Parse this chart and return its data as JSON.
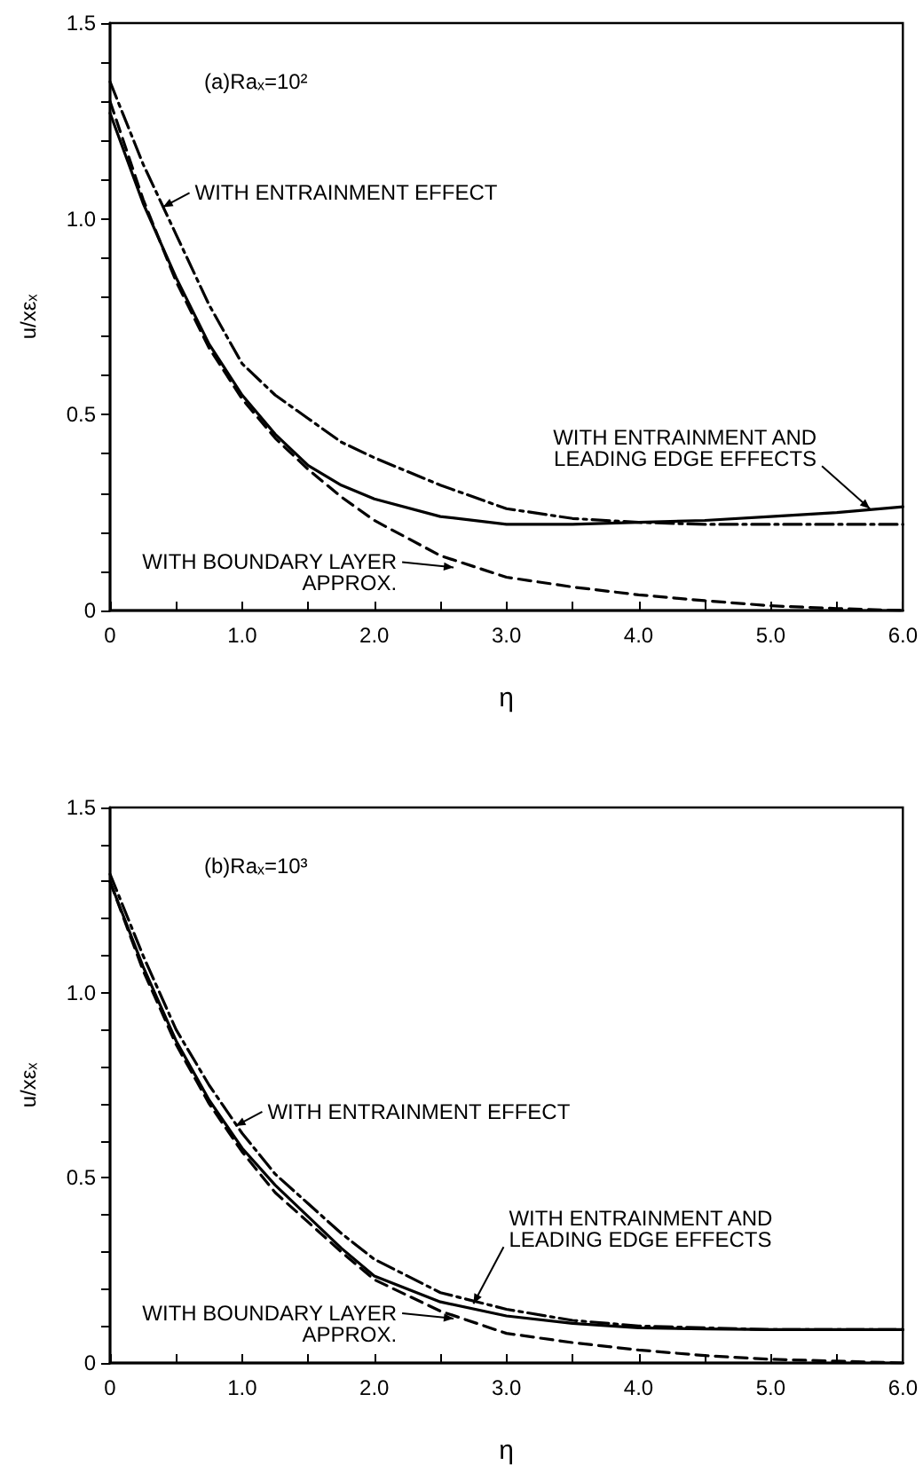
{
  "chart_data": [
    {
      "type": "line",
      "title": "(a)Raₓ=10²",
      "xlabel": "η",
      "ylabel": "u/xεₓ",
      "marker": "none",
      "grid": false,
      "x": [
        0,
        0.25,
        0.5,
        0.75,
        1.0,
        1.25,
        1.5,
        1.75,
        2.0,
        2.5,
        3.0,
        3.5,
        4.0,
        4.5,
        5.0,
        5.5,
        6.0
      ],
      "xlim": [
        0,
        6
      ],
      "xticks": [
        {
          "value": 0,
          "label": "0"
        },
        {
          "value": 0.5,
          "label": null
        },
        {
          "value": 1,
          "label": "1.0"
        },
        {
          "value": 1.5,
          "label": null
        },
        {
          "value": 2,
          "label": "2.0"
        },
        {
          "value": 2.5,
          "label": null
        },
        {
          "value": 3,
          "label": "3.0"
        },
        {
          "value": 3.5,
          "label": null
        },
        {
          "value": 4,
          "label": "4.0"
        },
        {
          "value": 4.5,
          "label": null
        },
        {
          "value": 5,
          "label": "5.0"
        },
        {
          "value": 5.5,
          "label": null
        },
        {
          "value": 6,
          "label": "6.0"
        }
      ],
      "ylim": [
        0,
        1.5
      ],
      "yticks": [
        {
          "value": 0,
          "label": "0"
        },
        {
          "value": 0.1,
          "label": null
        },
        {
          "value": 0.2,
          "label": null
        },
        {
          "value": 0.3,
          "label": null
        },
        {
          "value": 0.4,
          "label": null
        },
        {
          "value": 0.5,
          "label": "0.5"
        },
        {
          "value": 0.6,
          "label": null
        },
        {
          "value": 0.7,
          "label": null
        },
        {
          "value": 0.8,
          "label": null
        },
        {
          "value": 0.9,
          "label": null
        },
        {
          "value": 1,
          "label": "1.0"
        },
        {
          "value": 1.1,
          "label": null
        },
        {
          "value": 1.2,
          "label": null
        },
        {
          "value": 1.3,
          "label": null
        },
        {
          "value": 1.4,
          "label": null
        },
        {
          "value": 1.5,
          "label": "1.5"
        }
      ],
      "series": [
        {
          "color": "#000000",
          "line_style": "solid",
          "values": [
            1.27,
            1.04,
            0.85,
            0.68,
            0.55,
            0.45,
            0.37,
            0.32,
            0.285,
            0.24,
            0.22,
            0.22,
            0.225,
            0.23,
            0.24,
            0.25,
            0.265
          ]
        },
        {
          "color": "#000000",
          "line_style": "dashdot",
          "values": [
            1.35,
            1.14,
            0.96,
            0.78,
            0.63,
            0.55,
            0.49,
            0.43,
            0.39,
            0.32,
            0.26,
            0.235,
            0.225,
            0.22,
            0.22,
            0.22,
            0.22
          ]
        },
        {
          "color": "#000000",
          "line_style": "dashed",
          "values": [
            1.3,
            1.05,
            0.84,
            0.67,
            0.54,
            0.44,
            0.36,
            0.29,
            0.23,
            0.14,
            0.085,
            0.06,
            0.04,
            0.025,
            0.012,
            0.005,
            0.0
          ]
        }
      ],
      "annotations": [
        {
          "text": "WITH ENTRAINMENT EFFECT",
          "x": 0.4,
          "y": 1.03
        },
        {
          "text": "WITH ENTRAINMENT AND\nLEADING EDGE EFFECTS",
          "x": 5.75,
          "y": 0.26
        },
        {
          "text": "WITH BOUNDARY LAYER\nAPPROX.",
          "x": 2.6,
          "y": 0.11
        }
      ]
    },
    {
      "type": "line",
      "title": "(b)Raₓ=10³",
      "xlabel": "η",
      "ylabel": "u/xεₓ",
      "marker": "none",
      "grid": false,
      "x": [
        0,
        0.25,
        0.5,
        0.75,
        1.0,
        1.25,
        1.5,
        1.75,
        2.0,
        2.5,
        3.0,
        3.5,
        4.0,
        4.5,
        5.0,
        5.5,
        6.0
      ],
      "xlim": [
        0,
        6
      ],
      "xticks": [
        {
          "value": 0,
          "label": "0"
        },
        {
          "value": 0.5,
          "label": null
        },
        {
          "value": 1,
          "label": "1.0"
        },
        {
          "value": 1.5,
          "label": null
        },
        {
          "value": 2,
          "label": "2.0"
        },
        {
          "value": 2.5,
          "label": null
        },
        {
          "value": 3,
          "label": "3.0"
        },
        {
          "value": 3.5,
          "label": null
        },
        {
          "value": 4,
          "label": "4.0"
        },
        {
          "value": 4.5,
          "label": null
        },
        {
          "value": 5,
          "label": "5.0"
        },
        {
          "value": 5.5,
          "label": null
        },
        {
          "value": 6,
          "label": "6.0"
        }
      ],
      "ylim": [
        0,
        1.5
      ],
      "yticks": [
        {
          "value": 0,
          "label": "0"
        },
        {
          "value": 0.1,
          "label": null
        },
        {
          "value": 0.2,
          "label": null
        },
        {
          "value": 0.3,
          "label": null
        },
        {
          "value": 0.4,
          "label": null
        },
        {
          "value": 0.5,
          "label": "0.5"
        },
        {
          "value": 0.6,
          "label": null
        },
        {
          "value": 0.7,
          "label": null
        },
        {
          "value": 0.8,
          "label": null
        },
        {
          "value": 0.9,
          "label": null
        },
        {
          "value": 1,
          "label": "1.0"
        },
        {
          "value": 1.1,
          "label": null
        },
        {
          "value": 1.2,
          "label": null
        },
        {
          "value": 1.3,
          "label": null
        },
        {
          "value": 1.4,
          "label": null
        },
        {
          "value": 1.5,
          "label": "1.5"
        }
      ],
      "series": [
        {
          "color": "#000000",
          "line_style": "solid",
          "values": [
            1.3,
            1.07,
            0.87,
            0.71,
            0.58,
            0.48,
            0.395,
            0.31,
            0.235,
            0.165,
            0.127,
            0.107,
            0.095,
            0.092,
            0.09,
            0.09,
            0.09
          ]
        },
        {
          "color": "#000000",
          "line_style": "dashdot",
          "values": [
            1.32,
            1.1,
            0.9,
            0.75,
            0.62,
            0.51,
            0.43,
            0.35,
            0.28,
            0.19,
            0.145,
            0.115,
            0.1,
            0.095,
            0.09,
            0.09,
            0.09
          ]
        },
        {
          "color": "#000000",
          "line_style": "dashed",
          "values": [
            1.3,
            1.06,
            0.86,
            0.7,
            0.57,
            0.46,
            0.38,
            0.3,
            0.225,
            0.14,
            0.08,
            0.055,
            0.035,
            0.02,
            0.01,
            0.005,
            0.0
          ]
        }
      ],
      "annotations": [
        {
          "text": "WITH ENTRAINMENT EFFECT",
          "x": 0.95,
          "y": 0.64
        },
        {
          "text": "WITH ENTRAINMENT AND\nLEADING EDGE EFFECTS",
          "x": 2.75,
          "y": 0.16
        },
        {
          "text": "WITH BOUNDARY LAYER\nAPPROX.",
          "x": 2.6,
          "y": 0.12
        }
      ]
    }
  ]
}
